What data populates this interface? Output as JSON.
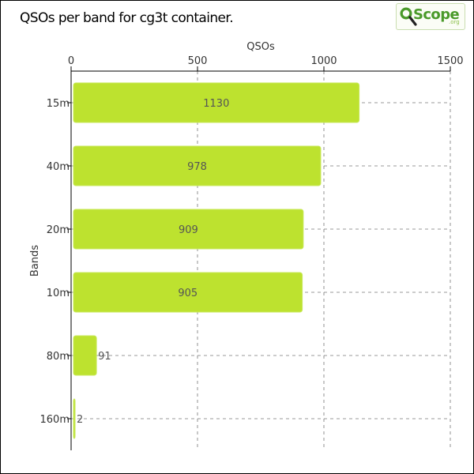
{
  "chart_data": {
    "type": "bar",
    "orientation": "horizontal",
    "title": "QSOs per band for cg3t container.",
    "xlabel": "QSOs",
    "ylabel": "Bands",
    "categories": [
      "15m",
      "40m",
      "20m",
      "10m",
      "80m",
      "160m"
    ],
    "values": [
      1130,
      978,
      909,
      905,
      91,
      2
    ],
    "xlim": [
      0,
      1500
    ],
    "xticks": [
      0,
      500,
      1000,
      1500
    ],
    "x_axis_position": "top",
    "grid": true,
    "bar_color": "#bde22f",
    "bar_stroke": "#c8e85a"
  },
  "logo": {
    "name": "Scope",
    "suffix": ".org",
    "color": "#4a9a2a"
  }
}
